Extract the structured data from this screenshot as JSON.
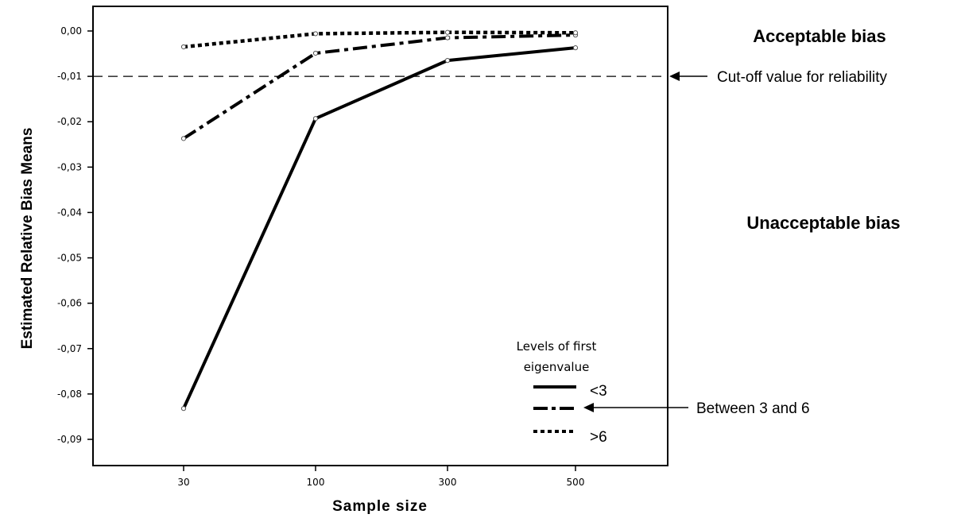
{
  "chart_data": {
    "type": "line",
    "x": [
      "30",
      "100",
      "300",
      "500"
    ],
    "xlabel": "Sample size",
    "ylabel": "Estimated Relative Bias Means",
    "ylim": [
      -0.095,
      0.005
    ],
    "yticks": [
      0.0,
      -0.01,
      -0.02,
      -0.03,
      -0.04,
      -0.05,
      -0.06,
      -0.07,
      -0.08,
      -0.09
    ],
    "ytick_labels": [
      "0,00",
      "-0,01",
      "-0,02",
      "-0,03",
      "-0,04",
      "-0,05",
      "-0,06",
      "-0,07",
      "-0,08",
      "-0,09"
    ],
    "grid": false,
    "series": [
      {
        "name": "<3",
        "style": "solid",
        "values": [
          -0.0832,
          -0.0193,
          -0.0065,
          -0.0037
        ]
      },
      {
        "name": "",
        "style": "dashdot",
        "values": [
          -0.0237,
          -0.0049,
          -0.0015,
          -0.0009
        ]
      },
      {
        "name": ">6",
        "style": "dotted",
        "values": [
          -0.0035,
          -0.0006,
          -0.0003,
          -0.0004
        ]
      }
    ],
    "reference_line": {
      "value": -0.01,
      "style": "dashed"
    },
    "legend": {
      "title": "Levels of first eigenvalue",
      "placement": "bottom-right"
    },
    "annotations": {
      "acceptable": "Acceptable bias",
      "unacceptable": "Unacceptable bias",
      "cutoff": "Cut-off value for reliability",
      "between": "Between 3 and 6"
    },
    "colors": {
      "lines": "#000000",
      "background": "#ffffff"
    }
  }
}
